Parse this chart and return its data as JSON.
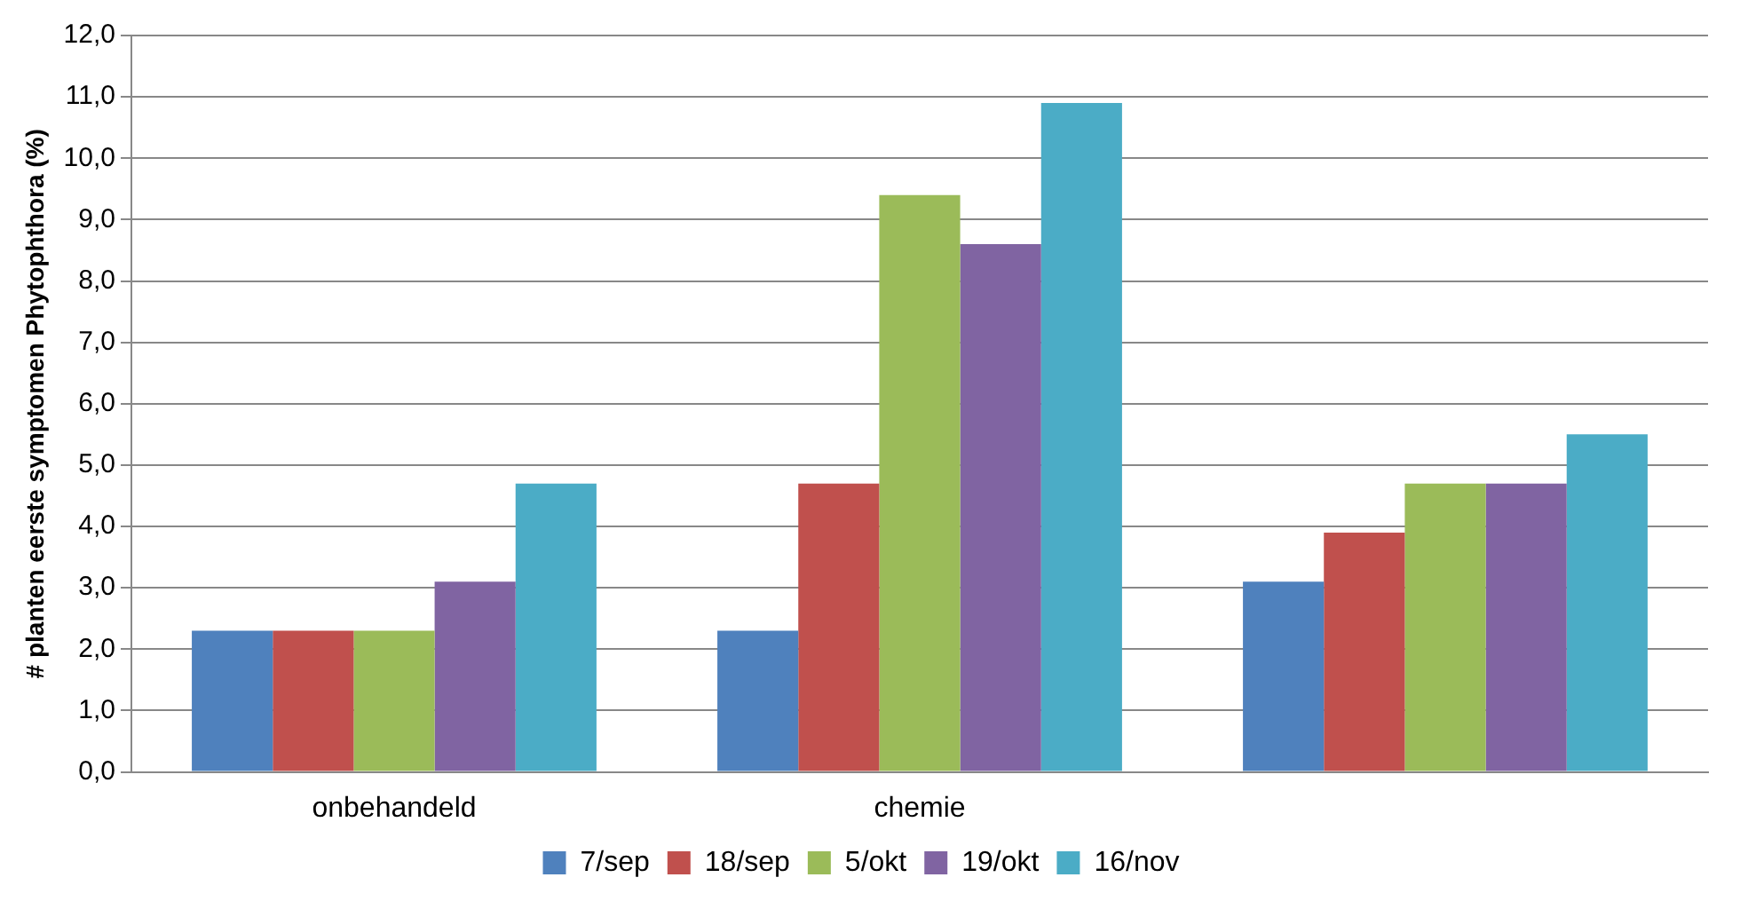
{
  "chart_data": {
    "type": "bar",
    "ylabel": "# planten eerste symptomen Phytophthora (%)",
    "categories": [
      "onbehandeld",
      "chemie",
      null
    ],
    "series": [
      {
        "name": "7/sep",
        "color": "#4f81bd",
        "values": [
          2.3,
          2.3,
          3.1
        ]
      },
      {
        "name": "18/sep",
        "color": "#c0504d",
        "values": [
          2.3,
          4.7,
          3.9
        ]
      },
      {
        "name": "5/okt",
        "color": "#9bbb59",
        "values": [
          2.3,
          9.4,
          4.7
        ]
      },
      {
        "name": "19/okt",
        "color": "#8064a2",
        "values": [
          3.1,
          8.6,
          4.7
        ]
      },
      {
        "name": "16/nov",
        "color": "#4bacc6",
        "values": [
          4.7,
          10.9,
          5.5
        ]
      }
    ],
    "ylim": [
      0,
      12
    ],
    "yticks": [
      {
        "value": 0,
        "label": "0,0"
      },
      {
        "value": 1,
        "label": "1,0"
      },
      {
        "value": 2,
        "label": "2,0"
      },
      {
        "value": 3,
        "label": "3,0"
      },
      {
        "value": 4,
        "label": "4,0"
      },
      {
        "value": 5,
        "label": "5,0"
      },
      {
        "value": 6,
        "label": "6,0"
      },
      {
        "value": 7,
        "label": "7,0"
      },
      {
        "value": 8,
        "label": "8,0"
      },
      {
        "value": 9,
        "label": "9,0"
      },
      {
        "value": 10,
        "label": "10,0"
      },
      {
        "value": 11,
        "label": "11,0"
      },
      {
        "value": 12,
        "label": "12,0"
      }
    ],
    "grid": "y",
    "legend": "bottom"
  }
}
